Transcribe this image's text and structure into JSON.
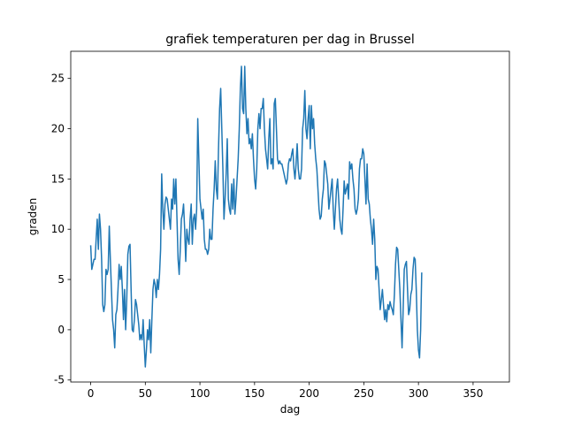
{
  "chart_data": {
    "type": "line",
    "title": "grafiek temperaturen per dag in Brussel",
    "xlabel": "dag",
    "ylabel": "graden",
    "xlim": [
      -18.25,
      383.25
    ],
    "ylim": [
      -5.2,
      27.7
    ],
    "xticks": [
      0,
      50,
      100,
      150,
      200,
      250,
      300,
      350
    ],
    "yticks": [
      -5,
      0,
      5,
      10,
      15,
      20,
      25
    ],
    "series": [
      {
        "color": "#1f77b4",
        "values": [
          8.4,
          6,
          6.5,
          7,
          7,
          9,
          11,
          8,
          11.5,
          10,
          7,
          2.5,
          1.8,
          2.5,
          6,
          5.5,
          6,
          10.3,
          7,
          4,
          1,
          0,
          -1.8,
          1.5,
          2,
          4,
          6.5,
          5,
          6.3,
          4,
          1,
          4,
          0,
          3,
          7.5,
          8.3,
          8.5,
          4,
          0,
          -0.2,
          1,
          3,
          2.5,
          1.5,
          0.5,
          -1,
          -0.5,
          -1,
          1,
          -1.5,
          -3.7,
          -2,
          0,
          -1,
          1,
          -2.3,
          1,
          4,
          5,
          4.5,
          3.2,
          5,
          4,
          5.5,
          8,
          15.5,
          12,
          10,
          12.5,
          13.2,
          13,
          12,
          11,
          10,
          13,
          12,
          15,
          12.5,
          15,
          11,
          7,
          5.5,
          8,
          11,
          11.5,
          12.5,
          10,
          6.8,
          10,
          9,
          8.5,
          11,
          12.5,
          8.5,
          11,
          11.5,
          10,
          12,
          21,
          17,
          13,
          12,
          11,
          12,
          9,
          8,
          8,
          7.5,
          8,
          10,
          9,
          9,
          12,
          14,
          16.8,
          14,
          13,
          18,
          22,
          24,
          20,
          16,
          11,
          13,
          15.5,
          19,
          13,
          12,
          11.5,
          14.5,
          12,
          15,
          11.5,
          13,
          15,
          17,
          20,
          24,
          26.2,
          22,
          21.5,
          26.2,
          22,
          19.5,
          21,
          18.5,
          19,
          18,
          19.5,
          17,
          15,
          14,
          16,
          20,
          21.5,
          20,
          22,
          22,
          23,
          20,
          18,
          17,
          16,
          19,
          21,
          16.5,
          17,
          16,
          22.5,
          23,
          20,
          17,
          16.5,
          16.8,
          16.5,
          16.5,
          16,
          15.5,
          15,
          14.5,
          15,
          16.5,
          17,
          16.8,
          17.5,
          18,
          16,
          15,
          16.5,
          18.5,
          16,
          15,
          15,
          16,
          20,
          21,
          23.8,
          20,
          19,
          21,
          22.3,
          18,
          22.3,
          20,
          21,
          18.5,
          17,
          16,
          14,
          12,
          11,
          11.3,
          13,
          14,
          16.8,
          16.5,
          15.5,
          14.5,
          12,
          13,
          14,
          15,
          12,
          10,
          12,
          14,
          15,
          13,
          11,
          10,
          9.5,
          12,
          14.8,
          13.5,
          14,
          14.5,
          13,
          16.7,
          16,
          16.5,
          15,
          14,
          12,
          11.5,
          12,
          13,
          16,
          17,
          17,
          18,
          17.5,
          15,
          12.5,
          16.5,
          13,
          12.5,
          11,
          10,
          8.5,
          11,
          9,
          5,
          6.3,
          6,
          4,
          2,
          3,
          4,
          2.5,
          1,
          2,
          0.8,
          2.5,
          2,
          2.8,
          2.3,
          2,
          1.5,
          3.5,
          6.5,
          8.2,
          8,
          6,
          4,
          1,
          -1.8,
          2,
          6,
          6.5,
          6.8,
          4,
          1.5,
          2,
          3.5,
          4,
          6,
          7.2,
          7,
          4,
          0,
          -2,
          -2.8,
          0,
          5.7
        ]
      }
    ]
  }
}
